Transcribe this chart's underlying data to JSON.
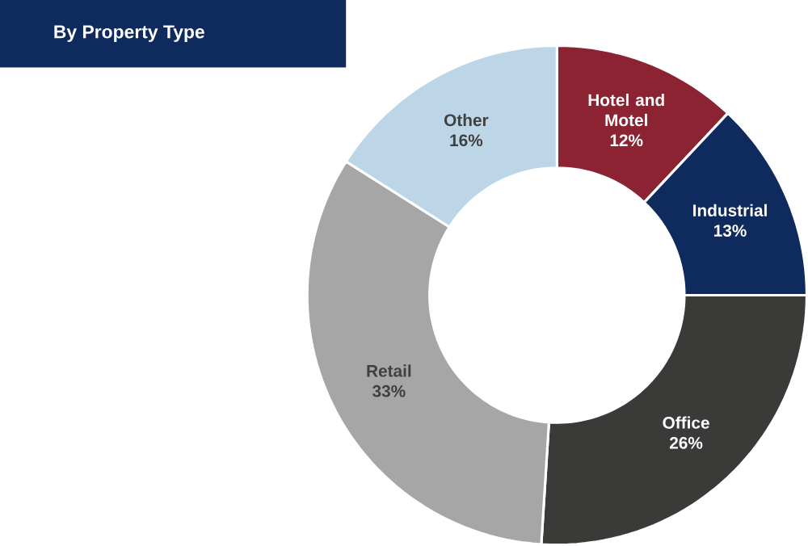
{
  "chart_data": {
    "type": "donut",
    "title": "By Property Type",
    "categories": [
      "Hotel and Motel",
      "Industrial",
      "Office",
      "Retail",
      "Other"
    ],
    "values": [
      12,
      13,
      26,
      33,
      16
    ],
    "value_labels": [
      "12%",
      "13%",
      "26%",
      "33%",
      "16%"
    ],
    "colors": [
      "#8b2332",
      "#0f2a5c",
      "#3a3b39",
      "#a6a6a6",
      "#bdd6e7"
    ]
  }
}
